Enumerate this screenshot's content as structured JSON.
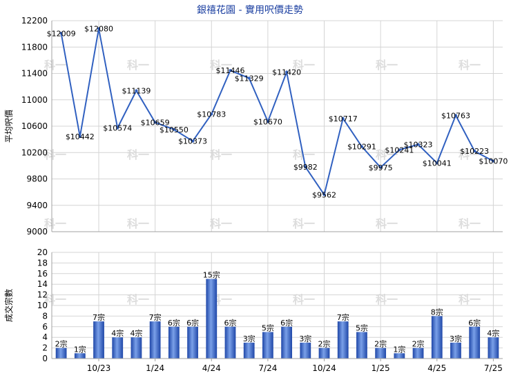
{
  "title": "銀禧花園 - 實用呎價走勢",
  "colors": {
    "line": "#3060c0",
    "grid": "#d4d4d4",
    "axis": "#a0a0a0",
    "bar_dark": "#1f47a8",
    "bar_light": "#7aa0e8",
    "watermark": "#dddddd",
    "title": "#1a3ea0"
  },
  "watermark_text": "科一",
  "chart_data": [
    {
      "type": "line",
      "ylabel": "平均呎價",
      "ylim": [
        9000,
        12200
      ],
      "yticks": [
        9000,
        9400,
        9800,
        10200,
        10600,
        11000,
        11400,
        11800,
        12200
      ],
      "value_prefix": "$",
      "values": [
        12009,
        10442,
        12080,
        10574,
        11139,
        10659,
        10550,
        10373,
        10783,
        11446,
        11329,
        10670,
        11420,
        9982,
        9562,
        10717,
        10291,
        9975,
        10241,
        10323,
        10041,
        10763,
        10223,
        10070
      ],
      "grid": true
    },
    {
      "type": "bar",
      "ylabel": "成交宗數",
      "ylim": [
        0,
        20
      ],
      "yticks": [
        0,
        2,
        4,
        6,
        8,
        10,
        12,
        14,
        16,
        18,
        20
      ],
      "value_suffix": "宗",
      "values": [
        2,
        1,
        7,
        4,
        4,
        7,
        6,
        6,
        15,
        6,
        3,
        5,
        6,
        3,
        2,
        7,
        5,
        2,
        1,
        2,
        8,
        3,
        6,
        4
      ],
      "xtick_labels": [
        "10/23",
        "1/24",
        "4/24",
        "7/24",
        "10/24",
        "1/25",
        "4/25",
        "7/25"
      ],
      "grid": true
    }
  ]
}
